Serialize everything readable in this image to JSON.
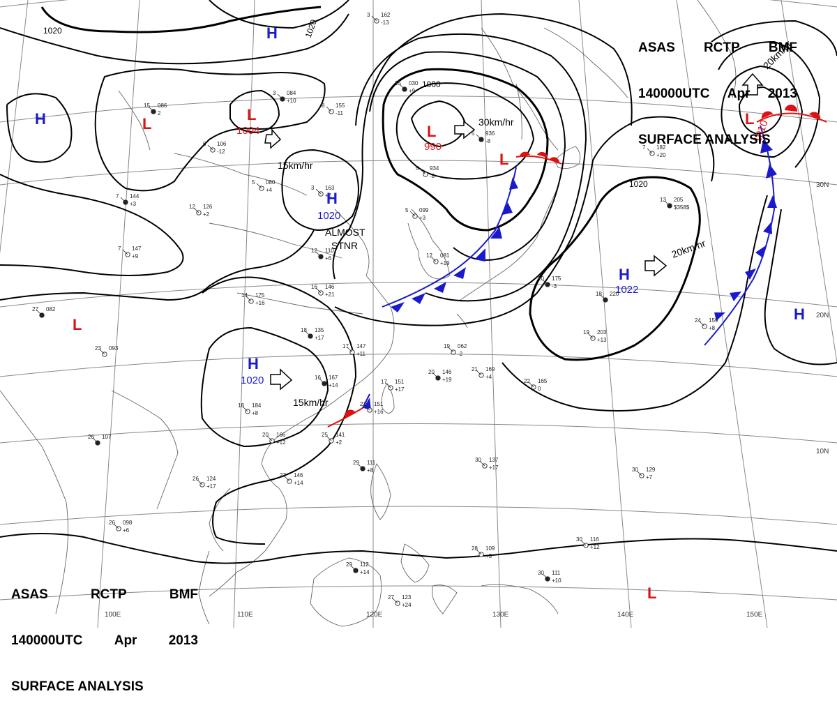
{
  "header_top_right": {
    "line1": [
      "ASAS",
      "RCTP",
      "BMF"
    ],
    "line2": [
      "140000UTC",
      "Apr",
      "2013"
    ],
    "line3": "SURFACE ANALYSIS"
  },
  "header_bottom_left": {
    "line1": [
      "ASAS",
      "RCTP",
      "BMF"
    ],
    "line2": [
      "140000UTC",
      "Apr",
      "2013"
    ],
    "line3": "SURFACE ANALYSIS"
  },
  "colors": {
    "high": "#1a1acc",
    "low": "#dd1111",
    "isobar": "#000000",
    "grid": "#888888",
    "coast": "#777777"
  },
  "pressure_centers": [
    {
      "id": "high-north-mongolia",
      "type": "H",
      "value": ""
    },
    {
      "id": "low-kazakhstan",
      "type": "L",
      "value": ""
    },
    {
      "id": "high-far-west",
      "type": "H",
      "value": ""
    },
    {
      "id": "low-lake-baikal",
      "type": "L",
      "value": "1004"
    },
    {
      "id": "high-north-china",
      "type": "H",
      "value": "1020"
    },
    {
      "id": "low-manchuria",
      "type": "L",
      "value": "990"
    },
    {
      "id": "low-sea-of-japan",
      "type": "L",
      "value": ""
    },
    {
      "id": "low-india",
      "type": "L",
      "value": ""
    },
    {
      "id": "high-south-china",
      "type": "H",
      "value": "1020"
    },
    {
      "id": "high-pacific",
      "type": "H",
      "value": "1022"
    },
    {
      "id": "low-kuril",
      "type": "L",
      "value": "1010"
    },
    {
      "id": "high-east-pacific",
      "type": "H",
      "value": ""
    },
    {
      "id": "low-bottom",
      "type": "L",
      "value": ""
    }
  ],
  "isobar_labels": [
    {
      "id": "iso-1020-tl",
      "value": "1020"
    },
    {
      "id": "iso-1020-top",
      "value": "1020"
    },
    {
      "id": "iso-1000",
      "value": "1000"
    },
    {
      "id": "iso-1020-pacific",
      "value": "1020"
    }
  ],
  "motions": [
    {
      "id": "motion-1004",
      "text": "15km/hr"
    },
    {
      "id": "motion-990",
      "text": "30km/hr"
    },
    {
      "id": "motion-south-china",
      "text": "15km/hr"
    },
    {
      "id": "motion-pacific",
      "text": "20km/hr"
    },
    {
      "id": "motion-kuril",
      "text": "20km/hr"
    }
  ],
  "annotations": {
    "almost_stationary": [
      "ALMOST",
      "STNR"
    ]
  },
  "longitude_labels": [
    "100E",
    "110E",
    "120E",
    "130E",
    "140E",
    "150E"
  ],
  "latitude_labels": [
    "30N",
    "20N",
    "10N"
  ],
  "station_plots": [
    {
      "t": "7",
      "p": "144",
      "d": "+3"
    },
    {
      "t": "12",
      "p": "126",
      "d": "+2"
    },
    {
      "t": "14",
      "p": "175",
      "d": "+16"
    },
    {
      "t": "18",
      "p": "135",
      "d": "+17"
    },
    {
      "t": "17",
      "p": "147",
      "d": "+11"
    },
    {
      "t": "23",
      "p": "093",
      "d": ""
    },
    {
      "t": "27",
      "p": "082",
      "d": ""
    },
    {
      "t": "18",
      "p": "184",
      "d": "+8"
    },
    {
      "t": "20",
      "p": "166",
      "d": "+12"
    },
    {
      "t": "16",
      "p": "167",
      "d": "+14"
    },
    {
      "t": "17",
      "p": "151",
      "d": "+17"
    },
    {
      "t": "21",
      "p": "151",
      "d": "+16"
    },
    {
      "t": "20",
      "p": "146",
      "d": "+19"
    },
    {
      "t": "21",
      "p": "169",
      "d": "+4"
    },
    {
      "t": "22",
      "p": "165",
      "d": "0"
    },
    {
      "t": "18",
      "p": "220",
      "d": ""
    },
    {
      "t": "19",
      "p": "203",
      "d": "+13"
    },
    {
      "t": "24",
      "p": "159",
      "d": "+8"
    },
    {
      "t": "13",
      "p": "205",
      "d": "$358$"
    },
    {
      "t": "7",
      "p": "182",
      "d": "+20"
    },
    {
      "t": "27",
      "p": "146",
      "d": "+14"
    },
    {
      "t": "29",
      "p": "111",
      "d": "+8"
    },
    {
      "t": "30",
      "p": "137",
      "d": "+17"
    },
    {
      "t": "30",
      "p": "129",
      "d": "+7"
    },
    {
      "t": "29",
      "p": "112",
      "d": "+14"
    },
    {
      "t": "28",
      "p": "109",
      "d": "+3"
    },
    {
      "t": "30",
      "p": "116",
      "d": "+12"
    },
    {
      "t": "30",
      "p": "111",
      "d": "+10"
    },
    {
      "t": "27",
      "p": "123",
      "d": "+24"
    },
    {
      "t": "26",
      "p": "098",
      "d": "+6"
    },
    {
      "t": "26",
      "p": "107",
      "d": ""
    },
    {
      "t": "26",
      "p": "124",
      "d": "+17"
    },
    {
      "t": "25",
      "p": "141",
      "d": "+2"
    },
    {
      "t": "15",
      "p": "086",
      "d": "2"
    },
    {
      "t": "5",
      "p": "080",
      "d": "+4"
    },
    {
      "t": "6",
      "p": "106",
      "d": "-12"
    },
    {
      "t": "3",
      "p": "084",
      "d": "+10"
    },
    {
      "t": "8",
      "p": "155",
      "d": "-11"
    },
    {
      "t": "5",
      "p": "099",
      "d": "+3"
    },
    {
      "t": "5",
      "p": "936",
      "d": "-8"
    },
    {
      "t": "5",
      "p": "934",
      "d": "-8"
    },
    {
      "t": "3",
      "p": "162",
      "d": "-13"
    },
    {
      "t": "12",
      "p": "110",
      "d": "+6"
    },
    {
      "t": "3",
      "p": "163",
      "d": "+2"
    },
    {
      "t": "16",
      "p": "146",
      "d": "+21"
    },
    {
      "t": "10",
      "p": "175",
      "d": "-3"
    },
    {
      "t": "7",
      "p": "147",
      "d": "+9"
    },
    {
      "t": "12",
      "p": "081",
      "d": "+19"
    },
    {
      "t": "15",
      "p": "030",
      "d": "+9"
    },
    {
      "t": "19",
      "p": "062",
      "d": "-2"
    }
  ]
}
